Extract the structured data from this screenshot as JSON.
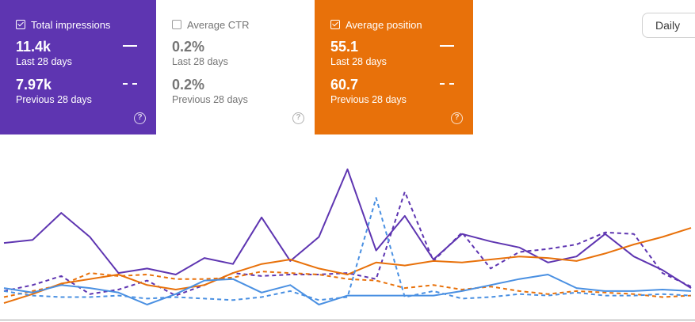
{
  "cards": [
    {
      "id": "impressions",
      "title": "Total impressions",
      "checked": true,
      "current_value": "11.4k",
      "current_label": "Last 28 days",
      "previous_value": "7.97k",
      "previous_label": "Previous 28 days"
    },
    {
      "id": "ctr",
      "title": "Average CTR",
      "checked": false,
      "current_value": "0.2%",
      "current_label": "Last 28 days",
      "previous_value": "0.2%",
      "previous_label": "Previous 28 days"
    },
    {
      "id": "position",
      "title": "Average position",
      "checked": true,
      "current_value": "55.1",
      "current_label": "Last 28 days",
      "previous_value": "60.7",
      "previous_label": "Previous 28 days"
    }
  ],
  "help_icon": "?",
  "period_select": {
    "value": "Daily"
  },
  "colors": {
    "impressions": "#5e35b1",
    "position": "#e8710a",
    "ctr": "#4a90e2",
    "axis": "#9e9e9e"
  },
  "chart_data": {
    "type": "line",
    "xlabel": "",
    "ylabel": "",
    "grid": false,
    "series": [
      {
        "metric": "impressions",
        "period": "current",
        "style": "solid",
        "color": "#5e35b1",
        "values": [
          0.51,
          0.53,
          0.71,
          0.55,
          0.31,
          0.34,
          0.3,
          0.41,
          0.37,
          0.68,
          0.39,
          0.55,
          1.0,
          0.46,
          0.69,
          0.4,
          0.57,
          0.52,
          0.48,
          0.38,
          0.42,
          0.57,
          0.42,
          0.33,
          0.21
        ]
      },
      {
        "metric": "impressions",
        "period": "previous",
        "style": "dashed",
        "color": "#5e35b1",
        "values": [
          0.19,
          0.23,
          0.29,
          0.17,
          0.2,
          0.26,
          0.16,
          0.23,
          0.31,
          0.29,
          0.3,
          0.3,
          0.31,
          0.27,
          0.85,
          0.39,
          0.58,
          0.34,
          0.45,
          0.47,
          0.5,
          0.58,
          0.57,
          0.31,
          0.22
        ]
      },
      {
        "metric": "position",
        "period": "current",
        "style": "solid",
        "color": "#e8710a",
        "values": [
          0.11,
          0.17,
          0.24,
          0.27,
          0.3,
          0.23,
          0.2,
          0.23,
          0.31,
          0.37,
          0.4,
          0.34,
          0.3,
          0.38,
          0.36,
          0.39,
          0.38,
          0.4,
          0.42,
          0.41,
          0.39,
          0.44,
          0.5,
          0.55,
          0.61
        ]
      },
      {
        "metric": "position",
        "period": "previous",
        "style": "dashed",
        "color": "#e8710a",
        "values": [
          0.15,
          0.19,
          0.23,
          0.31,
          0.29,
          0.3,
          0.27,
          0.27,
          0.28,
          0.32,
          0.31,
          0.3,
          0.27,
          0.26,
          0.21,
          0.23,
          0.2,
          0.22,
          0.19,
          0.17,
          0.19,
          0.18,
          0.17,
          0.15,
          0.16
        ]
      },
      {
        "metric": "ctr",
        "period": "current",
        "style": "solid",
        "color": "#4a90e2",
        "values": [
          0.21,
          0.18,
          0.23,
          0.21,
          0.18,
          0.1,
          0.17,
          0.26,
          0.27,
          0.18,
          0.23,
          0.1,
          0.16,
          0.16,
          0.16,
          0.16,
          0.19,
          0.23,
          0.27,
          0.3,
          0.21,
          0.19,
          0.19,
          0.2,
          0.19
        ]
      },
      {
        "metric": "ctr",
        "period": "previous",
        "style": "dashed",
        "color": "#4a90e2",
        "values": [
          0.19,
          0.16,
          0.15,
          0.15,
          0.16,
          0.14,
          0.15,
          0.14,
          0.13,
          0.15,
          0.19,
          0.13,
          0.15,
          0.81,
          0.15,
          0.19,
          0.14,
          0.15,
          0.17,
          0.16,
          0.18,
          0.16,
          0.16,
          0.17,
          0.16
        ]
      }
    ]
  }
}
